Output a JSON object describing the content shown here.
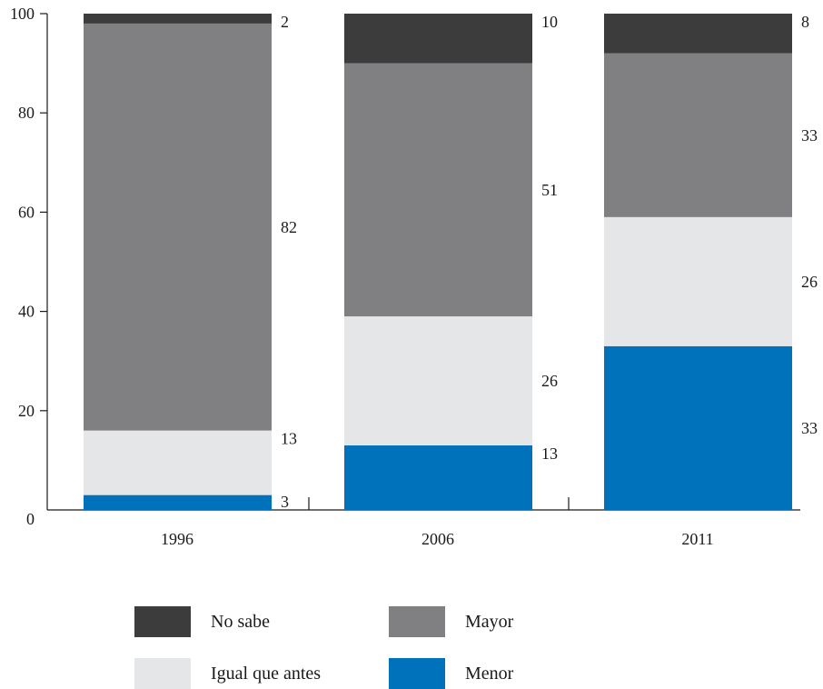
{
  "chart_data": {
    "type": "bar",
    "stacked": true,
    "categories": [
      "1996",
      "2006",
      "2011"
    ],
    "series": [
      {
        "name": "Menor",
        "values": [
          3,
          13,
          33
        ],
        "color": "#0072bb"
      },
      {
        "name": "Igual que antes",
        "values": [
          13,
          26,
          26
        ],
        "color": "#e5e6e8"
      },
      {
        "name": "Mayor",
        "values": [
          82,
          51,
          33
        ],
        "color": "#808083"
      },
      {
        "name": "No sabe",
        "values": [
          2,
          10,
          8
        ],
        "color": "#3c3c3c"
      }
    ],
    "ylim": [
      0,
      100
    ],
    "yticks": [
      "0",
      "20",
      "40",
      "60",
      "80",
      "100"
    ],
    "xlabel": "",
    "ylabel": "",
    "grid": false,
    "legend_position": "bottom"
  },
  "legend": {
    "items": [
      {
        "label": "No sabe",
        "color": "#3c3c3c"
      },
      {
        "label": "Mayor",
        "color": "#808083"
      },
      {
        "label": "Igual que antes",
        "color": "#e5e6e8"
      },
      {
        "label": "Menor",
        "color": "#0072bb"
      }
    ]
  }
}
